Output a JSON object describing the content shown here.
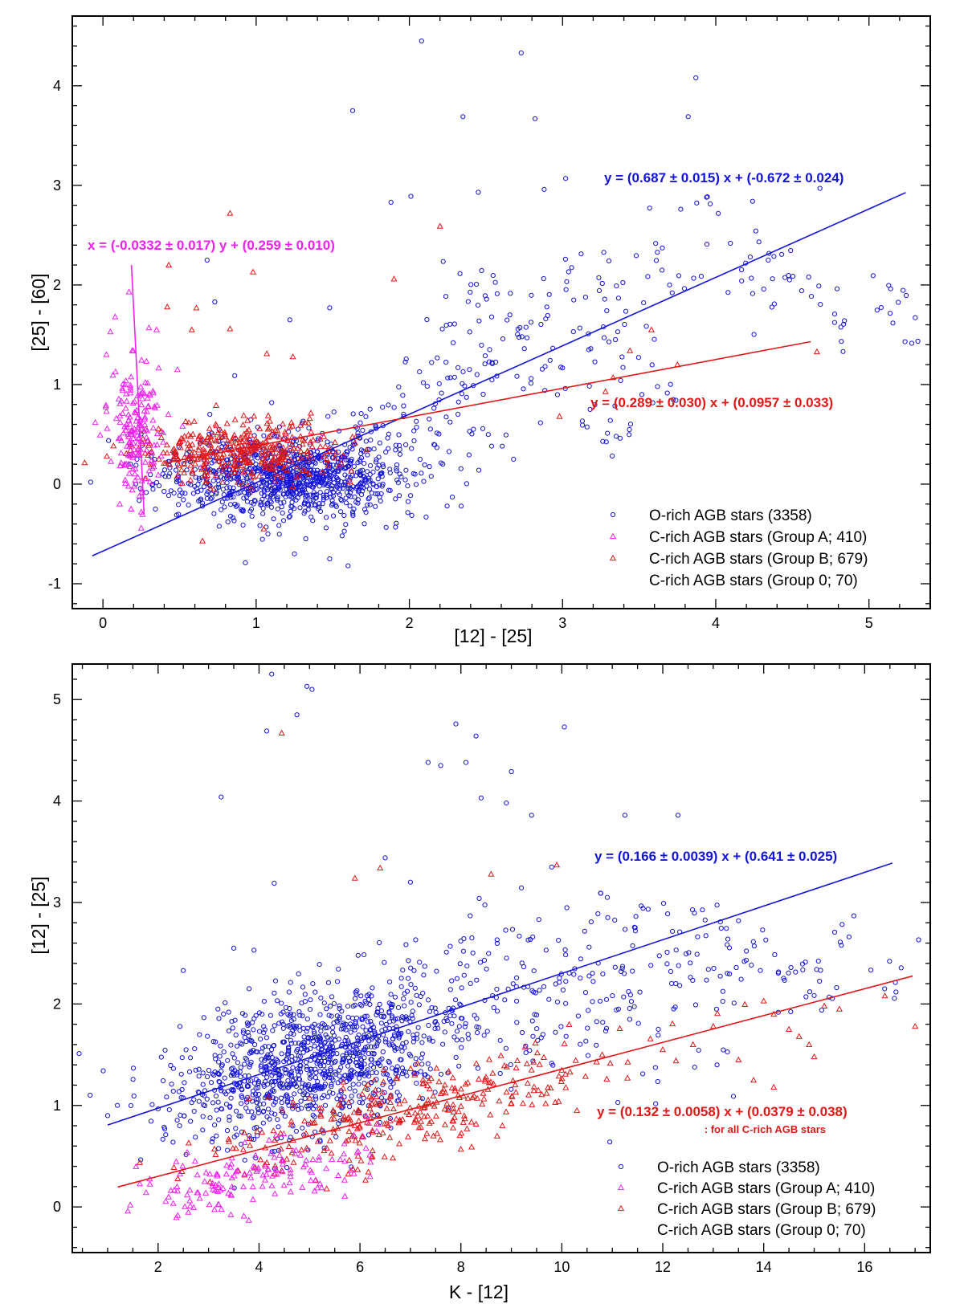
{
  "colors": {
    "o_rich": "#1414d8",
    "group_a": "#ee22ee",
    "group_b": "#e01818",
    "frame": "#000000"
  },
  "chart_data": [
    {
      "type": "scatter",
      "title": "",
      "xlabel": "[12] - [25]",
      "ylabel": "[25] - [60]",
      "xlim": [
        -0.2,
        5.4
      ],
      "ylim": [
        -1.25,
        4.7
      ],
      "x_ticks": [
        0,
        1,
        2,
        3,
        4,
        5
      ],
      "y_ticks": [
        -1,
        0,
        1,
        2,
        3,
        4
      ],
      "grid": false,
      "legend_position": "bottom-right",
      "legend": [
        {
          "label": "O-rich AGB stars (3358)",
          "marker": "circle",
          "color_key": "o_rich"
        },
        {
          "label": "C-rich AGB stars (Group A; 410)",
          "marker": "triangle",
          "color_key": "group_a"
        },
        {
          "label": "C-rich AGB stars (Group B; 679)",
          "marker": "triangle",
          "color_key": "group_b"
        },
        {
          "label": "C-rich AGB stars (Group 0; 70)",
          "marker": "none",
          "color_key": "frame"
        }
      ],
      "series": [
        {
          "name": "O-rich AGB stars (3358)",
          "marker": "circle",
          "color_key": "o_rich",
          "n_plotted": 1050,
          "cluster": {
            "x_center": 1.2,
            "x_sd": 0.38,
            "y_center": 0.08,
            "y_sd": 0.2
          },
          "trend_points": [
            [
              1.6,
              0.35
            ],
            [
              1.7,
              0.5
            ],
            [
              1.8,
              0.55
            ],
            [
              1.9,
              0.6
            ],
            [
              2.0,
              0.75
            ],
            [
              2.1,
              0.65
            ],
            [
              2.2,
              0.9
            ],
            [
              2.3,
              1.0
            ],
            [
              2.4,
              1.2
            ],
            [
              2.5,
              1.1
            ],
            [
              2.6,
              1.4
            ],
            [
              2.7,
              1.6
            ],
            [
              2.2,
              1.8
            ],
            [
              2.4,
              1.9
            ],
            [
              2.6,
              2.0
            ],
            [
              2.8,
              1.7
            ],
            [
              3.0,
              2.0
            ],
            [
              3.2,
              2.1
            ],
            [
              3.3,
              1.5
            ],
            [
              3.4,
              1.8
            ],
            [
              3.6,
              2.4
            ],
            [
              3.8,
              2.0
            ],
            [
              4.0,
              2.6
            ],
            [
              4.2,
              2.1
            ],
            [
              4.4,
              2.2
            ],
            [
              4.6,
              2.0
            ],
            [
              4.8,
              1.6
            ],
            [
              5.1,
              1.9
            ],
            [
              5.25,
              1.68
            ],
            [
              2.5,
              0.6
            ],
            [
              2.8,
              0.9
            ],
            [
              3.2,
              0.7
            ],
            [
              3.4,
              0.5
            ],
            [
              2.9,
              1.3
            ],
            [
              3.1,
              1.4
            ],
            [
              2.3,
              0.4
            ],
            [
              3.7,
              1.0
            ],
            [
              4.3,
              1.9
            ],
            [
              3.5,
              1.3
            ],
            [
              2.1,
              1.2
            ]
          ],
          "outliers": [
            [
              2.08,
              4.45
            ],
            [
              2.73,
              4.33
            ],
            [
              3.87,
              4.08
            ],
            [
              1.63,
              3.75
            ],
            [
              2.35,
              3.69
            ],
            [
              2.82,
              3.67
            ],
            [
              3.82,
              3.69
            ],
            [
              2.45,
              2.93
            ],
            [
              2.88,
              2.96
            ],
            [
              3.02,
              3.07
            ],
            [
              3.94,
              2.88
            ],
            [
              4.24,
              2.84
            ],
            [
              4.68,
              2.97
            ],
            [
              1.88,
              2.83
            ],
            [
              2.01,
              2.89
            ],
            [
              1.48,
              1.77
            ],
            [
              0.86,
              1.09
            ],
            [
              0.68,
              2.25
            ],
            [
              0.73,
              1.83
            ],
            [
              1.22,
              1.65
            ],
            [
              3.35,
              0.48
            ],
            [
              3.18,
              0.75
            ],
            [
              2.68,
              0.25
            ],
            [
              0.93,
              -0.79
            ],
            [
              1.48,
              -0.75
            ],
            [
              1.6,
              -0.82
            ],
            [
              1.25,
              -0.7
            ],
            [
              -0.08,
              0.02
            ],
            [
              4.84,
              1.64
            ],
            [
              3.62,
              0.98
            ]
          ]
        },
        {
          "name": "C-rich AGB stars (Group A; 410)",
          "marker": "triangle",
          "color_key": "group_a",
          "n_plotted": 175,
          "cluster": {
            "x_center": 0.22,
            "x_sd": 0.09,
            "y_center": 0.55,
            "y_sd": 0.38
          },
          "outliers": [
            [
              0.08,
              1.68
            ],
            [
              0.17,
              1.93
            ],
            [
              0.3,
              1.57
            ],
            [
              0.35,
              1.55
            ],
            [
              0.11,
              -0.2
            ],
            [
              0.25,
              -0.28
            ],
            [
              -0.05,
              0.62
            ]
          ]
        },
        {
          "name": "C-rich AGB stars (Group B; 679)",
          "marker": "triangle",
          "color_key": "group_b",
          "n_plotted": 380,
          "cluster": {
            "x_center": 0.9,
            "x_sd": 0.32,
            "y_center": 0.33,
            "y_sd": 0.16
          },
          "outliers": [
            [
              0.83,
              2.72
            ],
            [
              0.43,
              2.2
            ],
            [
              0.98,
              2.13
            ],
            [
              2.2,
              2.59
            ],
            [
              1.9,
              2.06
            ],
            [
              0.58,
              1.55
            ],
            [
              0.83,
              1.56
            ],
            [
              0.42,
              1.78
            ],
            [
              0.61,
              1.77
            ],
            [
              1.07,
              1.31
            ],
            [
              1.24,
              1.28
            ],
            [
              3.28,
              0.93
            ],
            [
              3.33,
              1.07
            ],
            [
              3.44,
              1.34
            ],
            [
              3.58,
              1.55
            ],
            [
              4.66,
              1.33
            ],
            [
              2.98,
              0.68
            ],
            [
              0.65,
              -0.57
            ],
            [
              1.05,
              -0.45
            ],
            [
              3.75,
              1.2
            ]
          ]
        }
      ],
      "fits": [
        {
          "label": "y = (0.687 ±  0.015) x + (-0.672 ±  0.024)",
          "color_key": "o_rich",
          "slope": 0.687,
          "intercept": -0.672,
          "orientation": "y_of_x",
          "range": [
            -0.07,
            5.24
          ]
        },
        {
          "label": "y = (0.289 ±  0.030) x + (0.0957 ±  0.033)",
          "color_key": "group_b",
          "slope": 0.289,
          "intercept": 0.0957,
          "orientation": "y_of_x",
          "range": [
            0.41,
            4.62
          ]
        },
        {
          "label": "x = (-0.0332 ±  0.017) y + (0.259 ±  0.010)",
          "color_key": "group_a",
          "slope": -0.0332,
          "intercept": 0.259,
          "orientation": "x_of_y",
          "range": [
            -0.3,
            2.2
          ]
        }
      ]
    },
    {
      "type": "scatter",
      "title": "",
      "xlabel": "K - [12]",
      "ylabel": "[12] - [25]",
      "xlim": [
        0.3,
        17.3
      ],
      "ylim": [
        -0.45,
        5.35
      ],
      "x_ticks": [
        2,
        4,
        6,
        8,
        10,
        12,
        14,
        16
      ],
      "y_ticks": [
        0,
        1,
        2,
        3,
        4,
        5
      ],
      "grid": false,
      "legend_position": "bottom-right",
      "legend": [
        {
          "label": "O-rich AGB stars (3358)",
          "marker": "circle",
          "color_key": "o_rich"
        },
        {
          "label": "C-rich AGB stars (Group A; 410)",
          "marker": "triangle",
          "color_key": "group_a"
        },
        {
          "label": "C-rich AGB stars (Group B; 679)",
          "marker": "triangle",
          "color_key": "group_b"
        },
        {
          "label": "C-rich AGB stars (Group 0; 70)",
          "marker": "none",
          "color_key": "frame"
        }
      ],
      "series": [
        {
          "name": "O-rich AGB stars (3358)",
          "marker": "circle",
          "color_key": "o_rich",
          "n_plotted": 1150,
          "cluster": {
            "x_center": 5.2,
            "x_sd": 1.45,
            "y_center": 1.45,
            "y_sd": 0.35
          },
          "trend_points": [
            [
              8.0,
              1.9
            ],
            [
              8.5,
              2.0
            ],
            [
              9.0,
              2.1
            ],
            [
              9.5,
              2.2
            ],
            [
              10.0,
              2.3
            ],
            [
              10.5,
              2.4
            ],
            [
              11.0,
              2.35
            ],
            [
              11.5,
              2.5
            ],
            [
              12.0,
              2.6
            ],
            [
              12.5,
              2.45
            ],
            [
              13.0,
              2.7
            ],
            [
              13.5,
              2.4
            ],
            [
              14.0,
              2.45
            ],
            [
              14.5,
              2.2
            ],
            [
              15.0,
              2.5
            ],
            [
              15.8,
              2.57
            ],
            [
              16.6,
              2.4
            ],
            [
              9.2,
              1.7
            ],
            [
              10.2,
              1.9
            ],
            [
              11.2,
              2.1
            ],
            [
              12.2,
              2.2
            ],
            [
              8.7,
              2.5
            ],
            [
              9.7,
              2.7
            ],
            [
              10.8,
              2.8
            ],
            [
              11.6,
              2.9
            ],
            [
              12.6,
              2.6
            ],
            [
              7.8,
              2.3
            ],
            [
              8.3,
              2.8
            ],
            [
              9.4,
              1.5
            ],
            [
              10.6,
              1.8
            ],
            [
              13.2,
              2.3
            ],
            [
              14.8,
              2.1
            ],
            [
              11.9,
              1.4
            ],
            [
              12.8,
              1.9
            ],
            [
              9.9,
              2.0
            ],
            [
              11.4,
              2.0
            ]
          ],
          "outliers": [
            [
              4.25,
              5.25
            ],
            [
              4.95,
              5.13
            ],
            [
              5.05,
              5.1
            ],
            [
              4.75,
              4.85
            ],
            [
              4.15,
              4.69
            ],
            [
              7.9,
              4.76
            ],
            [
              8.3,
              4.64
            ],
            [
              10.05,
              4.73
            ],
            [
              7.35,
              4.38
            ],
            [
              7.6,
              4.35
            ],
            [
              8.1,
              4.38
            ],
            [
              3.25,
              4.04
            ],
            [
              8.4,
              4.03
            ],
            [
              9.0,
              4.29
            ],
            [
              8.9,
              3.98
            ],
            [
              9.4,
              3.86
            ],
            [
              11.25,
              3.86
            ],
            [
              12.3,
              3.86
            ],
            [
              4.3,
              3.19
            ],
            [
              3.5,
              2.55
            ],
            [
              3.9,
              2.53
            ],
            [
              2.5,
              2.33
            ],
            [
              13.4,
              1.09
            ],
            [
              10.95,
              0.64
            ],
            [
              1.0,
              0.9
            ],
            [
              6.5,
              3.44
            ],
            [
              7.0,
              3.2
            ],
            [
              9.8,
              3.35
            ],
            [
              10.9,
              3.05
            ],
            [
              13.5,
              2.82
            ]
          ]
        },
        {
          "name": "C-rich AGB stars (Group A; 410)",
          "marker": "triangle",
          "color_key": "group_a",
          "n_plotted": 150,
          "cluster": {
            "x_center": 3.8,
            "x_sd": 1.1,
            "y_center": 0.3,
            "y_sd": 0.15
          },
          "outliers": [
            [
              1.4,
              -0.04
            ],
            [
              1.45,
              0.02
            ],
            [
              3.7,
              -0.09
            ],
            [
              6.2,
              0.3
            ],
            [
              5.7,
              0.45
            ]
          ]
        },
        {
          "name": "C-rich AGB stars (Group B; 679)",
          "marker": "triangle",
          "color_key": "group_b",
          "n_plotted": 330,
          "cluster": {
            "x_center": 7.0,
            "x_sd": 2.1,
            "y_center": 0.96,
            "y_sd": 0.2
          },
          "outliers": [
            [
              4.45,
              4.67
            ],
            [
              6.4,
              3.34
            ],
            [
              5.9,
              3.24
            ],
            [
              8.6,
              3.28
            ],
            [
              9.9,
              3.37
            ],
            [
              14.0,
              2.03
            ],
            [
              14.2,
              1.9
            ],
            [
              14.5,
              1.75
            ],
            [
              14.7,
              1.68
            ],
            [
              15.2,
              1.98
            ],
            [
              15.5,
              1.95
            ],
            [
              16.4,
              2.08
            ],
            [
              17.0,
              1.78
            ],
            [
              14.9,
              1.6
            ],
            [
              15.0,
              1.48
            ],
            [
              13.0,
              1.78
            ],
            [
              12.6,
              1.6
            ],
            [
              13.5,
              1.45
            ],
            [
              14.2,
              1.18
            ],
            [
              12.0,
              1.55
            ],
            [
              13.8,
              1.25
            ],
            [
              11.3,
              1.27
            ],
            [
              10.8,
              1.5
            ],
            [
              9.4,
              1.35
            ],
            [
              8.0,
              0.57
            ],
            [
              9.7,
              1.12
            ],
            [
              10.3,
              0.95
            ]
          ]
        }
      ],
      "fits": [
        {
          "label": "y = (0.166 ±  0.0039) x + (0.641 ±  0.025)",
          "color_key": "o_rich",
          "slope": 0.166,
          "intercept": 0.641,
          "orientation": "y_of_x",
          "range": [
            1.0,
            16.55
          ]
        },
        {
          "label": "y = (0.132 ±  0.0058) x + (0.0379 ±  0.038)",
          "color_key": "group_b",
          "slope": 0.132,
          "intercept": 0.0379,
          "orientation": "y_of_x",
          "range": [
            1.2,
            16.95
          ]
        }
      ],
      "fit_note": ": for all C-rich AGB stars"
    }
  ]
}
